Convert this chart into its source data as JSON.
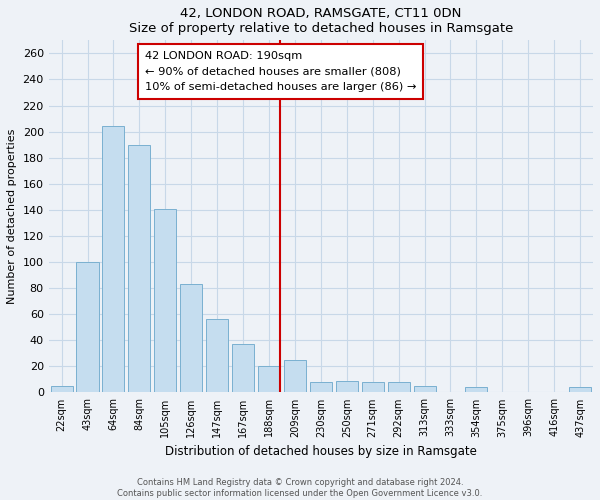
{
  "title": "42, LONDON ROAD, RAMSGATE, CT11 0DN",
  "subtitle": "Size of property relative to detached houses in Ramsgate",
  "xlabel": "Distribution of detached houses by size in Ramsgate",
  "ylabel": "Number of detached properties",
  "bar_labels": [
    "22sqm",
    "43sqm",
    "64sqm",
    "84sqm",
    "105sqm",
    "126sqm",
    "147sqm",
    "167sqm",
    "188sqm",
    "209sqm",
    "230sqm",
    "250sqm",
    "271sqm",
    "292sqm",
    "313sqm",
    "333sqm",
    "354sqm",
    "375sqm",
    "396sqm",
    "416sqm",
    "437sqm"
  ],
  "bar_values": [
    5,
    100,
    204,
    190,
    141,
    83,
    56,
    37,
    20,
    25,
    8,
    9,
    8,
    8,
    5,
    0,
    4,
    0,
    0,
    0,
    4
  ],
  "bar_color": "#c5ddef",
  "bar_edge_color": "#7ab0d0",
  "vline_color": "#cc0000",
  "ylim": [
    0,
    270
  ],
  "yticks": [
    0,
    20,
    40,
    60,
    80,
    100,
    120,
    140,
    160,
    180,
    200,
    220,
    240,
    260
  ],
  "annotation_title": "42 LONDON ROAD: 190sqm",
  "annotation_line1": "← 90% of detached houses are smaller (808)",
  "annotation_line2": "10% of semi-detached houses are larger (86) →",
  "annotation_box_color": "#ffffff",
  "annotation_box_edge": "#cc0000",
  "footer1": "Contains HM Land Registry data © Crown copyright and database right 2024.",
  "footer2": "Contains public sector information licensed under the Open Government Licence v3.0.",
  "bg_color": "#eef2f7",
  "grid_color": "#c8d8e8"
}
